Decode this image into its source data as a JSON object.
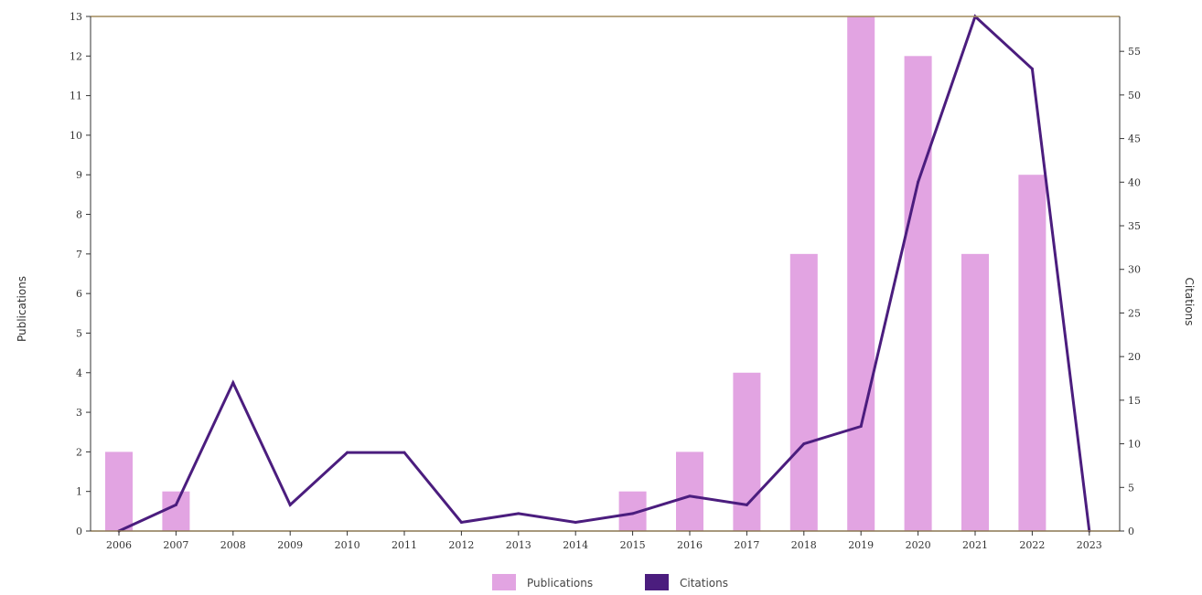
{
  "chart_data": {
    "type": "bar",
    "categories": [
      "2006",
      "2007",
      "2008",
      "2009",
      "2010",
      "2011",
      "2012",
      "2013",
      "2014",
      "2015",
      "2016",
      "2017",
      "2018",
      "2019",
      "2020",
      "2021",
      "2022",
      "2023"
    ],
    "series": [
      {
        "name": "Publications",
        "type": "bar",
        "axis": "left",
        "color": "#e2a4e2",
        "values": [
          2,
          1,
          0,
          0,
          0,
          0,
          0,
          0,
          0,
          1,
          2,
          4,
          7,
          13,
          12,
          7,
          9,
          0
        ]
      },
      {
        "name": "Citations",
        "type": "line",
        "axis": "right",
        "color": "#4b1d7e",
        "values": [
          0,
          3,
          17,
          3,
          9,
          9,
          1,
          2,
          1,
          2,
          4,
          3,
          10,
          12,
          40,
          59,
          53,
          0
        ]
      }
    ],
    "ylabel": "Publications",
    "y2label": "Citations",
    "ylim": [
      0,
      13
    ],
    "y2lim": [
      0,
      59
    ],
    "yticks": [
      0,
      1,
      2,
      3,
      4,
      5,
      6,
      7,
      8,
      9,
      10,
      11,
      12,
      13
    ],
    "y2ticks": [
      0,
      5,
      10,
      15,
      20,
      25,
      30,
      35,
      40,
      45,
      50,
      55
    ],
    "legend": [
      "Publications",
      "Citations"
    ],
    "legend_position": "bottom",
    "grid": false
  }
}
